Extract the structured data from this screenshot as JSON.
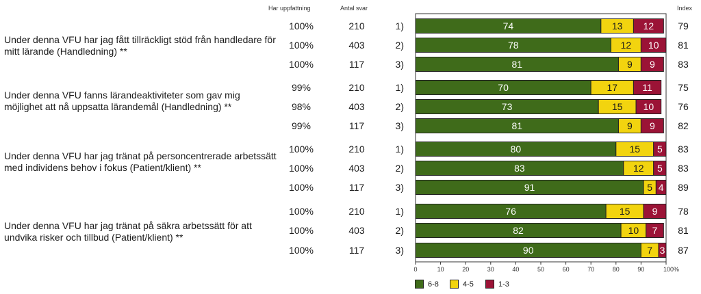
{
  "header": {
    "col_uppfattning": "Har uppfattning",
    "col_antal": "Antal svar",
    "col_index": "Index"
  },
  "colors": {
    "high": "#3f6b1a",
    "mid": "#f2d40f",
    "low": "#9b1336"
  },
  "questions": [
    {
      "text": "Under denna VFU har jag fått tillräckligt stöd från handledare för mitt lärande (Handledning) **"
    },
    {
      "text": "Under denna VFU fanns lärandeaktiviteter som gav mig möjlighet att nå uppsatta lärandemål (Handledning) **"
    },
    {
      "text": "Under denna VFU har jag tränat på personcentrerade arbetssätt med individens behov i fokus (Patient/klient) **"
    },
    {
      "text": "Under denna VFU har jag tränat på säkra arbetssätt för att undvika risker och tillbud (Patient/klient) **"
    }
  ],
  "rows": [
    {
      "uppfattning": "100%",
      "antal": "210",
      "grupp": "1)",
      "index": "79"
    },
    {
      "uppfattning": "100%",
      "antal": "403",
      "grupp": "2)",
      "index": "81"
    },
    {
      "uppfattning": "100%",
      "antal": "117",
      "grupp": "3)",
      "index": "83"
    },
    {
      "uppfattning": "99%",
      "antal": "210",
      "grupp": "1)",
      "index": "75"
    },
    {
      "uppfattning": "98%",
      "antal": "403",
      "grupp": "2)",
      "index": "76"
    },
    {
      "uppfattning": "99%",
      "antal": "117",
      "grupp": "3)",
      "index": "82"
    },
    {
      "uppfattning": "100%",
      "antal": "210",
      "grupp": "1)",
      "index": "83"
    },
    {
      "uppfattning": "100%",
      "antal": "403",
      "grupp": "2)",
      "index": "83"
    },
    {
      "uppfattning": "100%",
      "antal": "117",
      "grupp": "3)",
      "index": "89"
    },
    {
      "uppfattning": "100%",
      "antal": "210",
      "grupp": "1)",
      "index": "78"
    },
    {
      "uppfattning": "100%",
      "antal": "403",
      "grupp": "2)",
      "index": "81"
    },
    {
      "uppfattning": "100%",
      "antal": "117",
      "grupp": "3)",
      "index": "87"
    }
  ],
  "chart_data": {
    "type": "bar",
    "orientation": "horizontal",
    "stacked": true,
    "categories": [
      "1)",
      "2)",
      "3)",
      "1)",
      "2)",
      "3)",
      "1)",
      "2)",
      "3)",
      "1)",
      "2)",
      "3)"
    ],
    "series": [
      {
        "name": "6-8",
        "values": [
          74,
          78,
          81,
          70,
          73,
          81,
          80,
          83,
          91,
          76,
          82,
          90
        ]
      },
      {
        "name": "4-5",
        "values": [
          13,
          12,
          9,
          17,
          15,
          9,
          15,
          12,
          5,
          15,
          10,
          7
        ]
      },
      {
        "name": "1-3",
        "values": [
          12,
          10,
          9,
          11,
          10,
          9,
          5,
          5,
          4,
          9,
          7,
          3
        ]
      }
    ],
    "xlim": [
      0,
      100
    ],
    "xticks": [
      "0",
      "10",
      "20",
      "30",
      "40",
      "50",
      "60",
      "70",
      "80",
      "90",
      "100%"
    ],
    "grid": false,
    "legend_position": "bottom"
  }
}
